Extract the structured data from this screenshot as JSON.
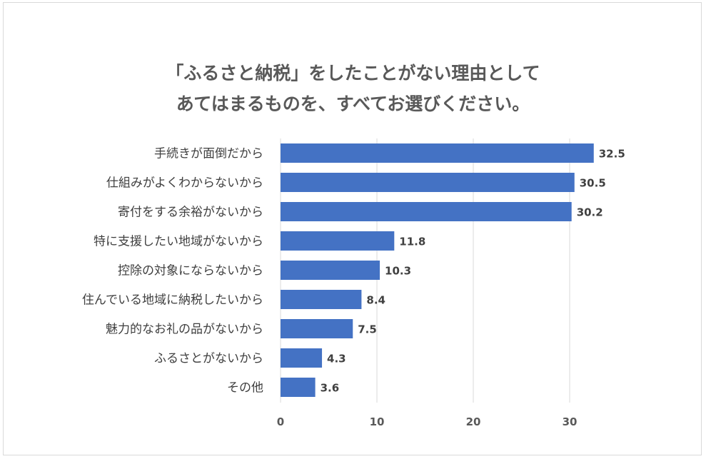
{
  "chart_data": {
    "type": "bar",
    "orientation": "horizontal",
    "title": [
      "「ふるさと納税」をしたことがない理由として",
      "あてはまるものを、すべてお選びください。"
    ],
    "categories": [
      "手続きが面倒だから",
      "仕組みがよくわからないから",
      "寄付をする余裕がないから",
      "特に支援したい地域がないから",
      "控除の対象にならないから",
      "住んでいる地域に納税したいから",
      "魅力的なお礼の品がないから",
      "ふるさとがないから",
      "その他"
    ],
    "values": [
      32.5,
      30.5,
      30.2,
      11.8,
      10.3,
      8.4,
      7.5,
      4.3,
      3.6
    ],
    "value_labels": [
      "32.5",
      "30.5",
      "30.2",
      "11.8",
      "10.3",
      "8.4",
      "7.5",
      "4.3",
      "3.6"
    ],
    "xlim": [
      0,
      35
    ],
    "xticks": [
      0,
      10,
      20,
      30
    ],
    "xtick_labels": [
      "0",
      "10",
      "20",
      "30"
    ],
    "bar_color": "#4472c4",
    "grid": "vertical",
    "legend": "none"
  }
}
